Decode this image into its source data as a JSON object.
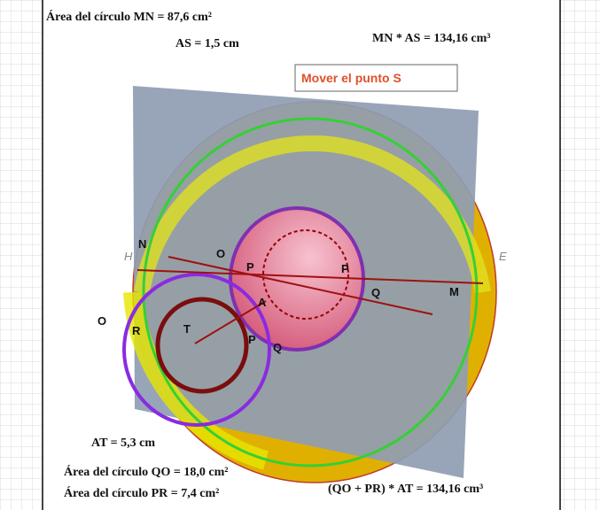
{
  "header": {
    "area_mn": "Área del círculo MN = 87,6 cm²",
    "as": "AS = 1,5 cm",
    "mn_as": "MN * AS = 134,16 cm³"
  },
  "button": {
    "label": "Mover el punto S"
  },
  "footer": {
    "at": "AT = 5,3 cm",
    "area_qo": "Área del círculo QO = 18,0 cm²",
    "area_pr": "Área del círculo PR = 7,4 cm²",
    "product": "(QO + PR) * AT = 134,16 cm³"
  },
  "points": [
    "H",
    "N",
    "O",
    "P",
    "P",
    "Q",
    "M",
    "E",
    "O",
    "R",
    "T",
    "A",
    "P",
    "Q"
  ]
}
